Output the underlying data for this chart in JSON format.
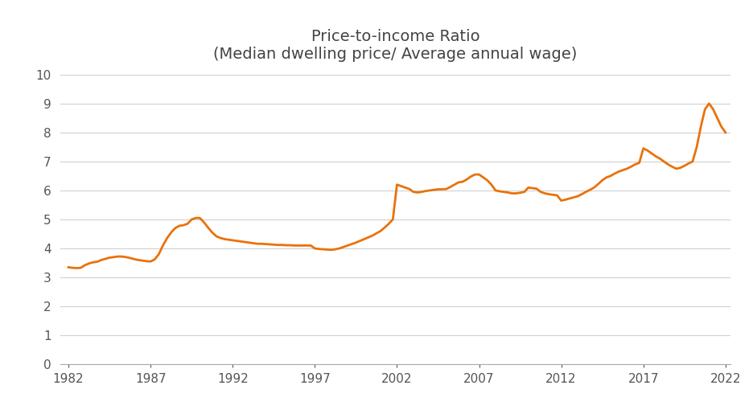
{
  "title_line1": "Price-to-income Ratio",
  "title_line2": "(Median dwelling price/ Average annual wage)",
  "line_color": "#E8720C",
  "line_width": 2.0,
  "background_color": "#ffffff",
  "grid_color": "#d0d0d0",
  "xlim": [
    1982,
    2022
  ],
  "ylim": [
    0,
    10
  ],
  "yticks": [
    0,
    1,
    2,
    3,
    4,
    5,
    6,
    7,
    8,
    9,
    10
  ],
  "xticks": [
    1982,
    1987,
    1992,
    1997,
    2002,
    2007,
    2012,
    2017,
    2022
  ],
  "years": [
    1982.0,
    1982.25,
    1982.5,
    1982.75,
    1983.0,
    1983.25,
    1983.5,
    1983.75,
    1984.0,
    1984.25,
    1984.5,
    1984.75,
    1985.0,
    1985.25,
    1985.5,
    1985.75,
    1986.0,
    1986.25,
    1986.5,
    1986.75,
    1987.0,
    1987.25,
    1987.5,
    1987.75,
    1988.0,
    1988.25,
    1988.5,
    1988.75,
    1989.0,
    1989.25,
    1989.5,
    1989.75,
    1990.0,
    1990.25,
    1990.5,
    1990.75,
    1991.0,
    1991.25,
    1991.5,
    1991.75,
    1992.0,
    1992.25,
    1992.5,
    1992.75,
    1993.0,
    1993.25,
    1993.5,
    1993.75,
    1994.0,
    1994.25,
    1994.5,
    1994.75,
    1995.0,
    1995.25,
    1995.5,
    1995.75,
    1996.0,
    1996.25,
    1996.5,
    1996.75,
    1997.0,
    1997.25,
    1997.5,
    1997.75,
    1998.0,
    1998.25,
    1998.5,
    1998.75,
    1999.0,
    1999.25,
    1999.5,
    1999.75,
    2000.0,
    2000.25,
    2000.5,
    2000.75,
    2001.0,
    2001.25,
    2001.5,
    2001.75,
    2002.0,
    2002.25,
    2002.5,
    2002.75,
    2003.0,
    2003.25,
    2003.5,
    2003.75,
    2004.0,
    2004.25,
    2004.5,
    2004.75,
    2005.0,
    2005.25,
    2005.5,
    2005.75,
    2006.0,
    2006.25,
    2006.5,
    2006.75,
    2007.0,
    2007.25,
    2007.5,
    2007.75,
    2008.0,
    2008.25,
    2008.5,
    2008.75,
    2009.0,
    2009.25,
    2009.5,
    2009.75,
    2010.0,
    2010.25,
    2010.5,
    2010.75,
    2011.0,
    2011.25,
    2011.5,
    2011.75,
    2012.0,
    2012.25,
    2012.5,
    2012.75,
    2013.0,
    2013.25,
    2013.5,
    2013.75,
    2014.0,
    2014.25,
    2014.5,
    2014.75,
    2015.0,
    2015.25,
    2015.5,
    2015.75,
    2016.0,
    2016.25,
    2016.5,
    2016.75,
    2017.0,
    2017.25,
    2017.5,
    2017.75,
    2018.0,
    2018.25,
    2018.5,
    2018.75,
    2019.0,
    2019.25,
    2019.5,
    2019.75,
    2020.0,
    2020.25,
    2020.5,
    2020.75,
    2021.0,
    2021.25,
    2021.5,
    2021.75,
    2022.0
  ],
  "values": [
    3.35,
    3.33,
    3.32,
    3.33,
    3.42,
    3.48,
    3.52,
    3.54,
    3.6,
    3.64,
    3.68,
    3.7,
    3.72,
    3.72,
    3.7,
    3.67,
    3.63,
    3.6,
    3.58,
    3.56,
    3.55,
    3.62,
    3.8,
    4.1,
    4.35,
    4.55,
    4.7,
    4.78,
    4.8,
    4.85,
    5.0,
    5.05,
    5.05,
    4.9,
    4.72,
    4.55,
    4.42,
    4.36,
    4.32,
    4.3,
    4.28,
    4.26,
    4.24,
    4.22,
    4.2,
    4.18,
    4.16,
    4.16,
    4.15,
    4.14,
    4.13,
    4.12,
    4.12,
    4.11,
    4.11,
    4.1,
    4.1,
    4.1,
    4.1,
    4.1,
    4.0,
    3.98,
    3.97,
    3.96,
    3.95,
    3.97,
    4.0,
    4.05,
    4.1,
    4.15,
    4.2,
    4.26,
    4.32,
    4.38,
    4.44,
    4.52,
    4.6,
    4.72,
    4.85,
    5.0,
    6.2,
    6.15,
    6.1,
    6.05,
    5.95,
    5.93,
    5.95,
    5.98,
    6.0,
    6.02,
    6.04,
    6.04,
    6.05,
    6.12,
    6.2,
    6.28,
    6.3,
    6.38,
    6.48,
    6.55,
    6.55,
    6.45,
    6.35,
    6.2,
    6.0,
    5.97,
    5.95,
    5.93,
    5.9,
    5.9,
    5.92,
    5.95,
    6.1,
    6.08,
    6.06,
    5.95,
    5.9,
    5.87,
    5.85,
    5.83,
    5.65,
    5.68,
    5.72,
    5.76,
    5.8,
    5.87,
    5.95,
    6.02,
    6.1,
    6.22,
    6.35,
    6.45,
    6.5,
    6.58,
    6.65,
    6.7,
    6.75,
    6.82,
    6.9,
    6.95,
    7.45,
    7.38,
    7.28,
    7.18,
    7.1,
    7.0,
    6.9,
    6.82,
    6.75,
    6.78,
    6.85,
    6.93,
    7.0,
    7.5,
    8.2,
    8.8,
    9.0,
    8.8,
    8.5,
    8.2,
    8.0
  ]
}
